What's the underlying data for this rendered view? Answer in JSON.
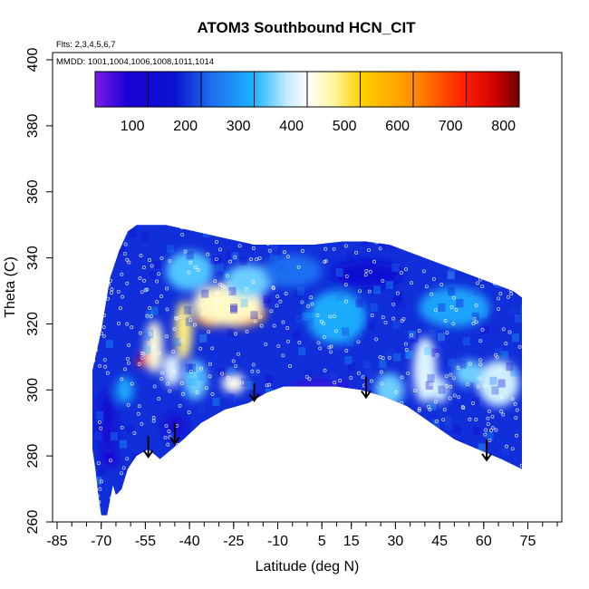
{
  "chart_data": {
    "type": "heatmap",
    "title": "ATOM3 Southbound HCN_CIT",
    "xlabel": "Latitude (deg N)",
    "ylabel": "Theta (C)",
    "notes": {
      "flights": "Flts: 2,3,4,5,6,7",
      "dates": "MMDD: 1001,1004,1006,1008,1011,1014"
    },
    "xlim": [
      -85,
      85
    ],
    "ylim": [
      260,
      400
    ],
    "x_ticks": [
      -85,
      -70,
      -55,
      -40,
      -25,
      -10,
      5,
      15,
      30,
      45,
      60,
      75
    ],
    "x_minor_step": 5,
    "y_ticks": [
      260,
      280,
      300,
      320,
      340,
      360,
      380,
      400
    ],
    "colorbar": {
      "range": [
        0,
        800
      ],
      "ticks": [
        100,
        200,
        300,
        400,
        500,
        600,
        700,
        800
      ],
      "stops": [
        {
          "v": 0,
          "c": "#7d1ce8"
        },
        {
          "v": 60,
          "c": "#1c00d6"
        },
        {
          "v": 150,
          "c": "#0a14d0"
        },
        {
          "v": 220,
          "c": "#1f6ef0"
        },
        {
          "v": 300,
          "c": "#1ab4ff"
        },
        {
          "v": 360,
          "c": "#bfe9ff"
        },
        {
          "v": 400,
          "c": "#ffffff"
        },
        {
          "v": 450,
          "c": "#fff5a0"
        },
        {
          "v": 500,
          "c": "#ffd200"
        },
        {
          "v": 600,
          "c": "#ff9000"
        },
        {
          "v": 700,
          "c": "#ff1a00"
        },
        {
          "v": 760,
          "c": "#c80000"
        },
        {
          "v": 800,
          "c": "#6a0000"
        }
      ]
    },
    "domain": {
      "top": [
        [
          -73,
          306
        ],
        [
          -70,
          318
        ],
        [
          -67,
          334
        ],
        [
          -64,
          342
        ],
        [
          -61,
          348
        ],
        [
          -58,
          350
        ],
        [
          -48,
          350
        ],
        [
          -38,
          348
        ],
        [
          -28,
          346
        ],
        [
          -18,
          344
        ],
        [
          -8,
          344
        ],
        [
          2,
          344
        ],
        [
          12,
          345
        ],
        [
          20,
          345
        ],
        [
          28,
          344
        ],
        [
          34,
          342
        ],
        [
          40,
          340
        ],
        [
          46,
          338
        ],
        [
          52,
          336
        ],
        [
          58,
          334
        ],
        [
          64,
          332
        ],
        [
          70,
          330
        ],
        [
          73,
          328
        ]
      ],
      "bottom": [
        [
          73,
          276
        ],
        [
          66,
          279
        ],
        [
          58,
          282
        ],
        [
          50,
          285
        ],
        [
          42,
          290
        ],
        [
          34,
          295
        ],
        [
          26,
          298
        ],
        [
          18,
          300
        ],
        [
          10,
          301
        ],
        [
          0,
          301
        ],
        [
          -8,
          301
        ],
        [
          -14,
          299
        ],
        [
          -20,
          296
        ],
        [
          -28,
          294
        ],
        [
          -36,
          290
        ],
        [
          -42,
          285
        ],
        [
          -46,
          282
        ],
        [
          -50,
          279
        ],
        [
          -54,
          282
        ],
        [
          -58,
          280
        ],
        [
          -61,
          276
        ],
        [
          -63,
          270
        ],
        [
          -65,
          268
        ],
        [
          -66,
          271
        ],
        [
          -68,
          262
        ],
        [
          -70,
          262
        ],
        [
          -71,
          268
        ],
        [
          -72,
          276
        ],
        [
          -73,
          282
        ],
        [
          -73,
          306
        ]
      ]
    },
    "background_value": 170,
    "features": [
      {
        "shape": "ellipse",
        "center": [
          -24,
          323
        ],
        "radius": [
          10,
          4
        ],
        "value": 560
      },
      {
        "shape": "ellipse",
        "center": [
          -32,
          322
        ],
        "radius": [
          6,
          3
        ],
        "value": 580
      },
      {
        "shape": "ellipse",
        "center": [
          -27,
          326
        ],
        "radius": [
          12,
          6
        ],
        "value": 430
      },
      {
        "shape": "ellipse",
        "center": [
          -42,
          318
        ],
        "radius": [
          3,
          9
        ],
        "value": 460
      },
      {
        "shape": "ellipse",
        "center": [
          -52,
          313
        ],
        "radius": [
          3,
          8
        ],
        "value": 420
      },
      {
        "shape": "ellipse",
        "center": [
          -56,
          309
        ],
        "radius": [
          2,
          2
        ],
        "value": 700
      },
      {
        "shape": "ellipse",
        "center": [
          -46,
          306
        ],
        "radius": [
          3,
          5
        ],
        "value": 380
      },
      {
        "shape": "ellipse",
        "center": [
          -40,
          336
        ],
        "radius": [
          8,
          6
        ],
        "value": 320
      },
      {
        "shape": "ellipse",
        "center": [
          -20,
          333
        ],
        "radius": [
          8,
          5
        ],
        "value": 330
      },
      {
        "shape": "ellipse",
        "center": [
          -38,
          303
        ],
        "radius": [
          4,
          6
        ],
        "value": 330
      },
      {
        "shape": "ellipse",
        "center": [
          -25,
          302
        ],
        "radius": [
          4,
          3
        ],
        "value": 410
      },
      {
        "shape": "ellipse",
        "center": [
          40,
          306
        ],
        "radius": [
          4,
          10
        ],
        "value": 380
      },
      {
        "shape": "ellipse",
        "center": [
          45,
          300
        ],
        "radius": [
          3,
          4
        ],
        "value": 370
      },
      {
        "shape": "ellipse",
        "center": [
          28,
          300
        ],
        "radius": [
          5,
          5
        ],
        "value": 330
      },
      {
        "shape": "ellipse",
        "center": [
          65,
          302
        ],
        "radius": [
          7,
          7
        ],
        "value": 370
      },
      {
        "shape": "ellipse",
        "center": [
          55,
          305
        ],
        "radius": [
          5,
          4
        ],
        "value": 330
      },
      {
        "shape": "ellipse",
        "center": [
          10,
          322
        ],
        "radius": [
          10,
          8
        ],
        "value": 290
      },
      {
        "shape": "ellipse",
        "center": [
          -5,
          336
        ],
        "radius": [
          10,
          5
        ],
        "value": 220
      },
      {
        "shape": "ellipse",
        "center": [
          20,
          335
        ],
        "radius": [
          12,
          4
        ],
        "value": 120
      },
      {
        "shape": "ellipse",
        "center": [
          50,
          325
        ],
        "radius": [
          12,
          6
        ],
        "value": 280
      },
      {
        "shape": "ellipse",
        "center": [
          -68,
          290
        ],
        "radius": [
          3,
          10
        ],
        "value": 110
      },
      {
        "shape": "ellipse",
        "center": [
          -67,
          279
        ],
        "radius": [
          3,
          2
        ],
        "value": 60
      },
      {
        "shape": "ellipse",
        "center": [
          5,
          301
        ],
        "radius": [
          10,
          1.5
        ],
        "value": 40
      },
      {
        "shape": "ellipse",
        "center": [
          -45,
          289
        ],
        "radius": [
          4,
          4
        ],
        "value": 110
      },
      {
        "shape": "ellipse",
        "center": [
          -62,
          300
        ],
        "radius": [
          3,
          4
        ],
        "value": 290
      }
    ],
    "arrows": [
      {
        "x": -54,
        "y_top": 286,
        "y_bottom": 280
      },
      {
        "x": -45,
        "y_top": 290,
        "y_bottom": 284
      },
      {
        "x": -18,
        "y_top": 302,
        "y_bottom": 297
      },
      {
        "x": 20,
        "y_top": 304,
        "y_bottom": 298
      },
      {
        "x": 61,
        "y_top": 285,
        "y_bottom": 279
      }
    ]
  }
}
